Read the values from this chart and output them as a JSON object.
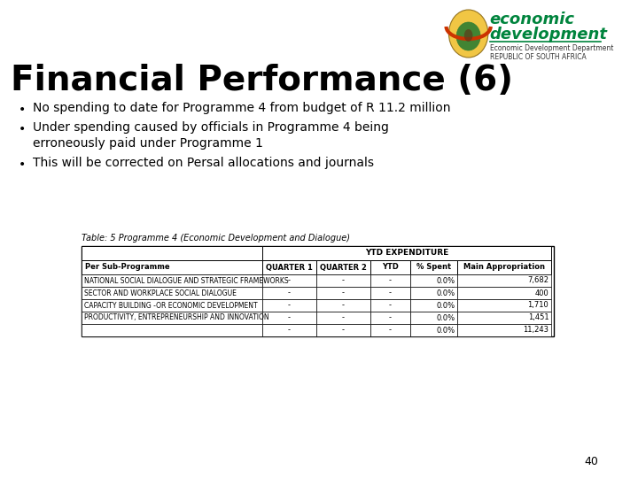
{
  "title": "Financial Performance (6)",
  "bg_color": "#ffffff",
  "title_color": "#000000",
  "title_fontsize": 28,
  "bullets": [
    "No spending to date for Programme 4 from budget of R 11.2 million",
    "Under spending caused by officials in Programme 4 being\nerroneously paid under Programme 1",
    "This will be corrected on Persal allocations and journals"
  ],
  "table_title": "Table: 5 Programme 4 (Economic Development and Dialogue)",
  "table_header_row1": [
    "",
    "YTD EXPENDITURE",
    "",
    "",
    "",
    ""
  ],
  "table_header_row2": [
    "Per Sub-Programme",
    "QUARTER 1",
    "QUARTER 2",
    "YTD",
    "% Spent",
    "Main Appropriation"
  ],
  "table_rows": [
    [
      "NATIONAL SOCIAL DIALOGUE AND STRATEGIC FRAMEWORKS",
      "-",
      "-",
      "-",
      "0.0%",
      "7,682"
    ],
    [
      "SECTOR AND WORKPLACE SOCIAL DIALOGUE",
      "-",
      "-",
      "-",
      "0.0%",
      "400"
    ],
    [
      "CAPACITY BUILDING -OR ECONOMIC DEVELOPMENT",
      "-",
      "-",
      "-",
      "0.0%",
      "1,710"
    ],
    [
      "PRODUCTIVITY, ENTREPRENEURSHIP AND INNOVATION",
      "-",
      "-",
      "-",
      "0.0%",
      "1,451"
    ],
    [
      "",
      "-",
      "-",
      "-",
      "0.0%",
      "11,243"
    ]
  ],
  "page_number": "40",
  "header_brand_text1": "economic",
  "header_brand_text2": "development",
  "header_brand_text3": "Economic Development Department",
  "header_brand_text4": "REPUBLIC OF SOUTH AFRICA",
  "brand_color": "#00843d"
}
